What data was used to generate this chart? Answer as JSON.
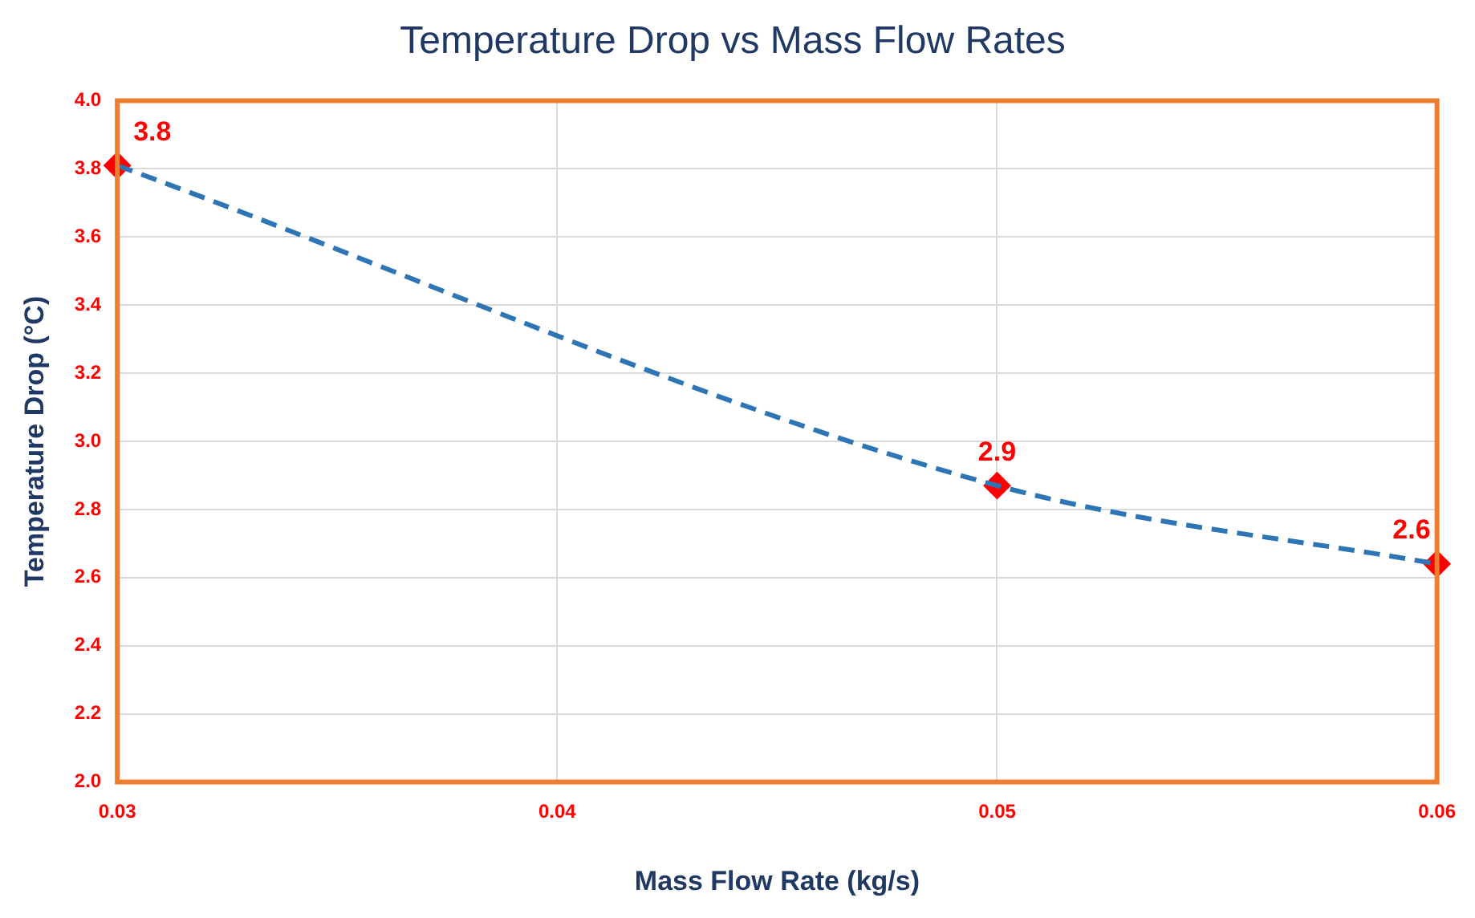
{
  "chart_data": {
    "type": "line",
    "title": "Temperature Drop vs Mass Flow Rates",
    "xlabel": "Mass Flow Rate (kg/s)",
    "ylabel": "Temperature Drop (°C)",
    "x": [
      0.03,
      0.05,
      0.06
    ],
    "series": [
      {
        "type": "line",
        "color": "#2e75b6",
        "values": [
          3.81,
          2.87,
          2.64
        ],
        "marker": "none",
        "line_style": "dashed"
      },
      {
        "type": "scatter",
        "color": "#ff0000",
        "values": [
          3.81,
          2.87,
          2.64
        ],
        "marker": "diamond",
        "value_labels": [
          "3.8",
          "2.9",
          "2.6"
        ]
      }
    ],
    "xlim": [
      0.03,
      0.06
    ],
    "xticks": [
      0.03,
      0.04,
      0.05,
      0.06
    ],
    "ylim": [
      2,
      4
    ],
    "yticks": [
      {
        "value": 2,
        "label": "2.0"
      },
      {
        "value": 2.2,
        "label": "2.2"
      },
      {
        "value": 2.4,
        "label": "2.4"
      },
      {
        "value": 2.6,
        "label": "2.6"
      },
      {
        "value": 2.8,
        "label": "2.8"
      },
      {
        "value": 3,
        "label": "3.0"
      },
      {
        "value": 3.2,
        "label": "3.2"
      },
      {
        "value": 3.4,
        "label": "3.4"
      },
      {
        "value": 3.6,
        "label": "3.6"
      },
      {
        "value": 3.8,
        "label": "3.8"
      },
      {
        "value": 4,
        "label": "4.0"
      }
    ],
    "grid": true,
    "legend": false
  }
}
